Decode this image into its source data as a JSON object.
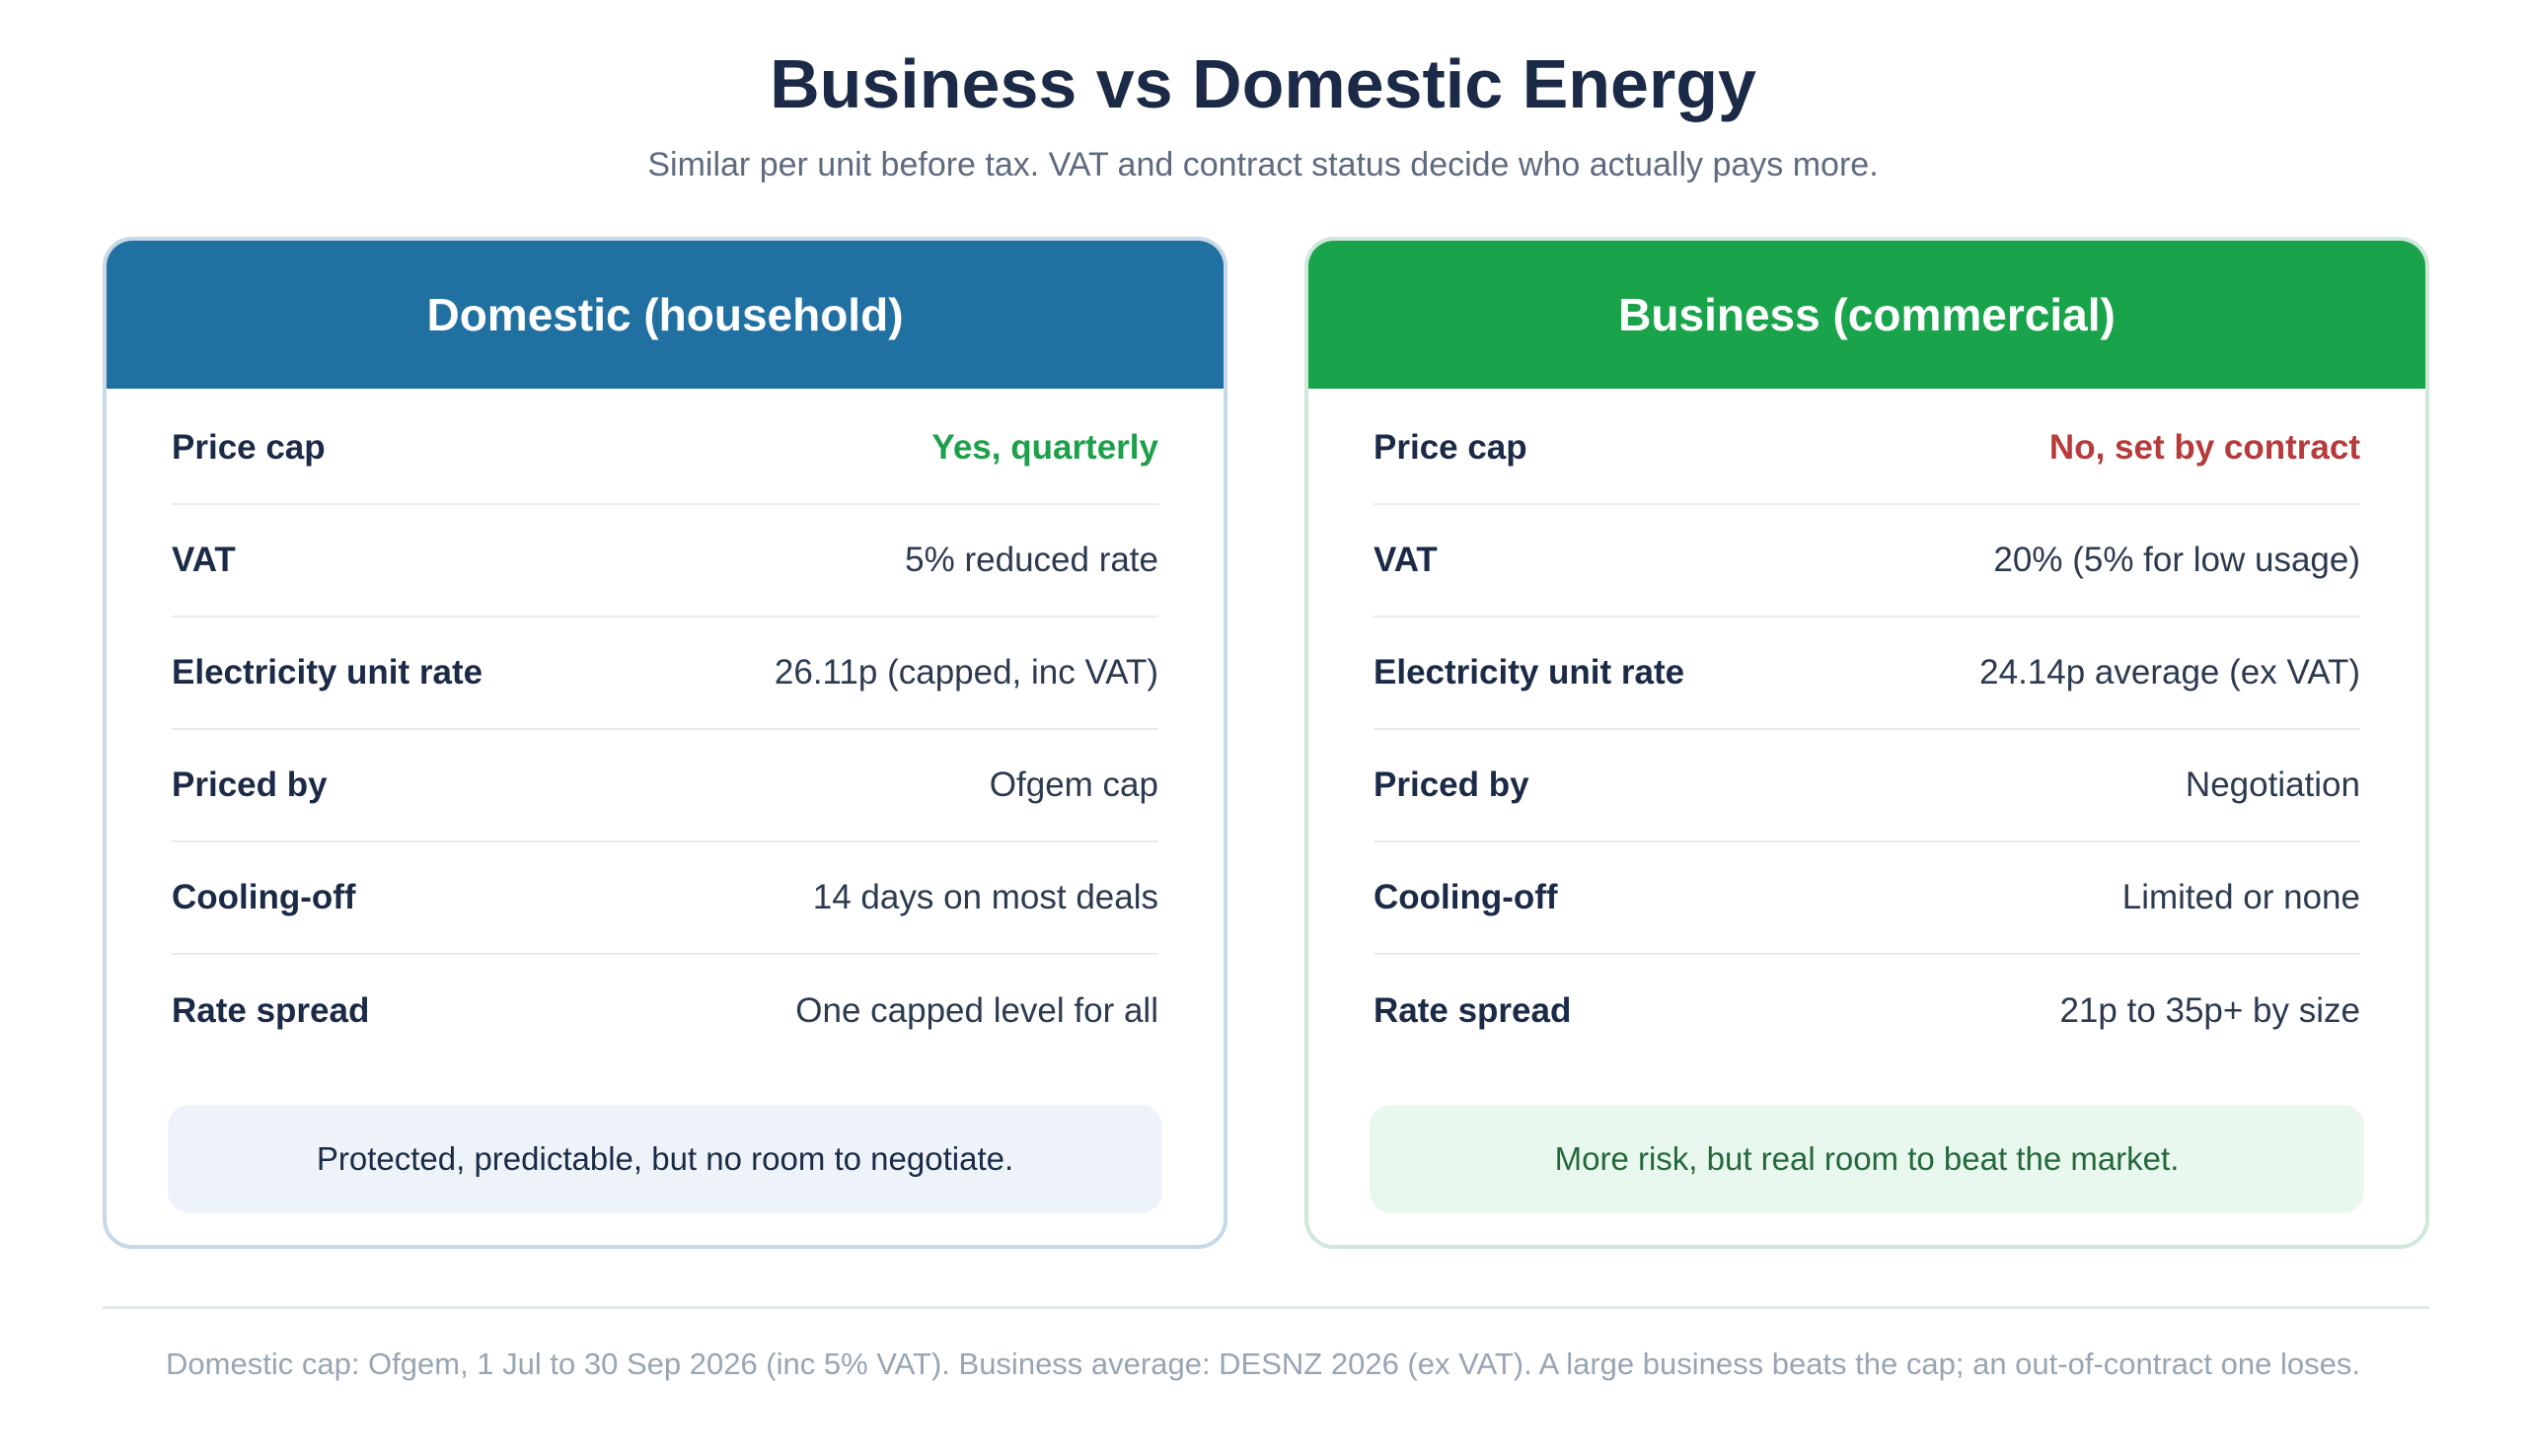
{
  "title": "Business vs Domestic Energy",
  "subtitle": "Similar per unit before tax. VAT and contract status decide who actually pays more.",
  "colors": {
    "domestic_header": "#2070a2",
    "business_header": "#19a34a",
    "positive": "#1ea04b",
    "negative": "#b73b3b"
  },
  "domestic": {
    "heading": "Domestic (household)",
    "rows": [
      {
        "label": "Price cap",
        "value": "Yes, quarterly"
      },
      {
        "label": "VAT",
        "value": "5% reduced rate"
      },
      {
        "label": "Electricity unit rate",
        "value": "26.11p (capped, inc VAT)"
      },
      {
        "label": "Priced by",
        "value": "Ofgem cap"
      },
      {
        "label": "Cooling-off",
        "value": "14 days on most deals"
      },
      {
        "label": "Rate spread",
        "value": "One capped level for all"
      }
    ],
    "summary": "Protected, predictable, but no room to negotiate."
  },
  "business": {
    "heading": "Business (commercial)",
    "rows": [
      {
        "label": "Price cap",
        "value": "No, set by contract"
      },
      {
        "label": "VAT",
        "value": "20% (5% for low usage)"
      },
      {
        "label": "Electricity unit rate",
        "value": "24.14p average (ex VAT)"
      },
      {
        "label": "Priced by",
        "value": "Negotiation"
      },
      {
        "label": "Cooling-off",
        "value": "Limited or none"
      },
      {
        "label": "Rate spread",
        "value": "21p to 35p+ by size"
      }
    ],
    "summary": "More risk, but real room to beat the market."
  },
  "footnote": "Domestic cap: Ofgem, 1 Jul to 30 Sep 2026 (inc 5% VAT). Business average: DESNZ 2026 (ex VAT). A large business beats the cap; an out-of-contract one loses."
}
